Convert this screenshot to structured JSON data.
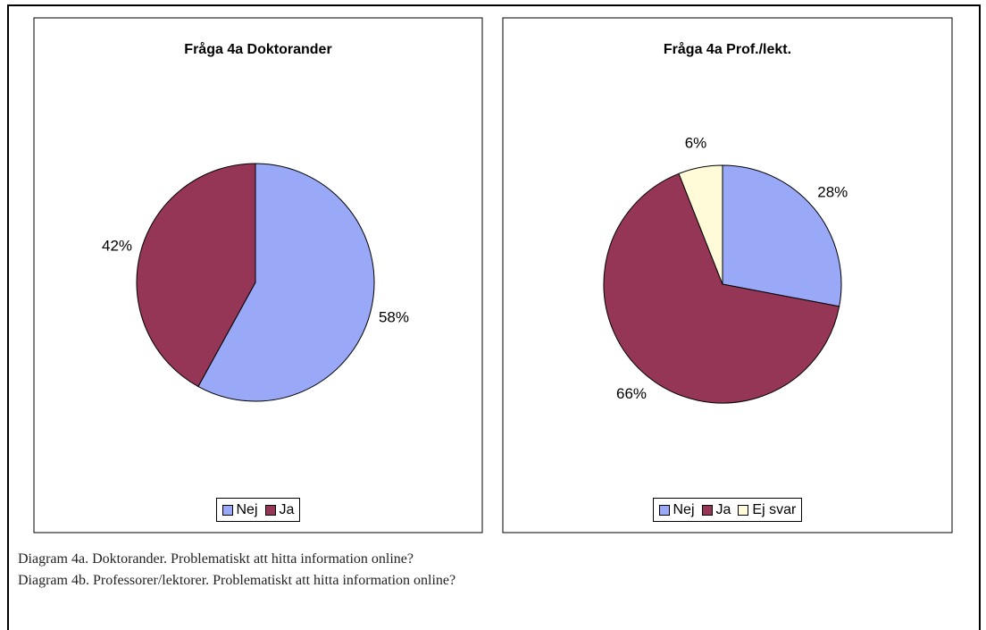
{
  "chart_data": [
    {
      "type": "pie",
      "title": "Fråga 4a Doktorander",
      "categories": [
        "Nej",
        "Ja"
      ],
      "values": [
        58,
        42
      ],
      "value_labels": [
        "58%",
        "42%"
      ],
      "colors": [
        "#99a8f7",
        "#953656"
      ]
    },
    {
      "type": "pie",
      "title": "Fråga 4a Prof./lekt.",
      "categories": [
        "Nej",
        "Ja",
        "Ej svar"
      ],
      "values": [
        28,
        66,
        6
      ],
      "value_labels": [
        "28%",
        "66%",
        "6%"
      ],
      "colors": [
        "#99a8f7",
        "#953656",
        "#fffbd8"
      ]
    }
  ],
  "captions": [
    "Diagram 4a. Doktorander. Problematiskt att hitta information online?",
    "Diagram 4b. Professorer/lektorer. Problematiskt att hitta information online?"
  ]
}
